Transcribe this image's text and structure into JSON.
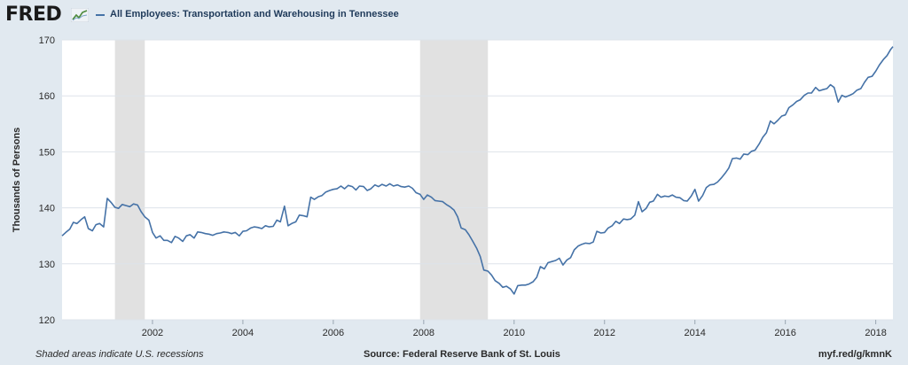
{
  "header": {
    "logo": "FRED",
    "title": "All Employees: Transportation and Warehousing in Tennessee"
  },
  "footer": {
    "recession_note": "Shaded areas indicate U.S. recessions",
    "source": "Source: Federal Reserve Bank of St. Louis",
    "short_url": "myf.red/g/kmnK"
  },
  "colors": {
    "line": "#4572a7",
    "recession": "#e1e1e1",
    "background": "#e1e9f0",
    "plot": "#ffffff",
    "grid": "#dde3ea"
  },
  "icons": [
    "fred-chart-icon"
  ],
  "chart_data": {
    "type": "line",
    "title": "All Employees: Transportation and Warehousing in Tennessee",
    "xlabel": "",
    "ylabel": "Thousands of Persons",
    "xlim": [
      2000.0,
      2018.38
    ],
    "ylim": [
      120,
      170
    ],
    "yticks": [
      120,
      130,
      140,
      150,
      160,
      170
    ],
    "xticks": [
      2002,
      2004,
      2006,
      2008,
      2010,
      2012,
      2014,
      2016,
      2018
    ],
    "xtick_labels": [
      "2002",
      "2004",
      "2006",
      "2008",
      "2010",
      "2012",
      "2014",
      "2016",
      "2018"
    ],
    "grid": true,
    "recessions": [
      [
        2001.17,
        2001.83
      ],
      [
        2007.92,
        2009.42
      ]
    ],
    "series": [
      {
        "name": "All Employees: Transportation and Warehousing in Tennessee",
        "points": [
          [
            2000.0,
            135.0
          ],
          [
            2000.08,
            135.6
          ],
          [
            2000.17,
            136.2
          ],
          [
            2000.25,
            137.4
          ],
          [
            2000.33,
            137.2
          ],
          [
            2000.42,
            137.9
          ],
          [
            2000.5,
            138.4
          ],
          [
            2000.58,
            136.3
          ],
          [
            2000.67,
            135.9
          ],
          [
            2000.75,
            137.0
          ],
          [
            2000.83,
            137.2
          ],
          [
            2000.92,
            136.6
          ],
          [
            2001.0,
            141.7
          ],
          [
            2001.08,
            141.0
          ],
          [
            2001.17,
            140.1
          ],
          [
            2001.25,
            139.9
          ],
          [
            2001.33,
            140.6
          ],
          [
            2001.42,
            140.4
          ],
          [
            2001.5,
            140.2
          ],
          [
            2001.58,
            140.7
          ],
          [
            2001.67,
            140.5
          ],
          [
            2001.75,
            139.3
          ],
          [
            2001.83,
            138.4
          ],
          [
            2001.92,
            137.8
          ],
          [
            2002.0,
            135.6
          ],
          [
            2002.08,
            134.6
          ],
          [
            2002.17,
            135.0
          ],
          [
            2002.25,
            134.2
          ],
          [
            2002.33,
            134.2
          ],
          [
            2002.42,
            133.8
          ],
          [
            2002.5,
            134.9
          ],
          [
            2002.58,
            134.6
          ],
          [
            2002.67,
            134.0
          ],
          [
            2002.75,
            135.0
          ],
          [
            2002.83,
            135.2
          ],
          [
            2002.92,
            134.6
          ],
          [
            2003.0,
            135.7
          ],
          [
            2003.08,
            135.6
          ],
          [
            2003.17,
            135.4
          ],
          [
            2003.25,
            135.3
          ],
          [
            2003.33,
            135.1
          ],
          [
            2003.42,
            135.4
          ],
          [
            2003.5,
            135.5
          ],
          [
            2003.58,
            135.7
          ],
          [
            2003.67,
            135.6
          ],
          [
            2003.75,
            135.4
          ],
          [
            2003.83,
            135.6
          ],
          [
            2003.92,
            135.0
          ],
          [
            2004.0,
            135.8
          ],
          [
            2004.08,
            135.9
          ],
          [
            2004.17,
            136.4
          ],
          [
            2004.25,
            136.6
          ],
          [
            2004.33,
            136.5
          ],
          [
            2004.42,
            136.3
          ],
          [
            2004.5,
            136.8
          ],
          [
            2004.58,
            136.6
          ],
          [
            2004.67,
            136.7
          ],
          [
            2004.75,
            137.8
          ],
          [
            2004.83,
            137.5
          ],
          [
            2004.92,
            140.3
          ],
          [
            2005.0,
            136.8
          ],
          [
            2005.08,
            137.2
          ],
          [
            2005.17,
            137.5
          ],
          [
            2005.25,
            138.7
          ],
          [
            2005.33,
            138.6
          ],
          [
            2005.42,
            138.4
          ],
          [
            2005.5,
            141.9
          ],
          [
            2005.58,
            141.5
          ],
          [
            2005.67,
            142.0
          ],
          [
            2005.75,
            142.2
          ],
          [
            2005.83,
            142.8
          ],
          [
            2005.92,
            143.1
          ],
          [
            2006.0,
            143.3
          ],
          [
            2006.08,
            143.4
          ],
          [
            2006.17,
            143.9
          ],
          [
            2006.25,
            143.4
          ],
          [
            2006.33,
            144.0
          ],
          [
            2006.42,
            143.8
          ],
          [
            2006.5,
            143.2
          ],
          [
            2006.58,
            143.9
          ],
          [
            2006.67,
            143.8
          ],
          [
            2006.75,
            143.1
          ],
          [
            2006.83,
            143.4
          ],
          [
            2006.92,
            144.1
          ],
          [
            2007.0,
            143.8
          ],
          [
            2007.08,
            144.2
          ],
          [
            2007.17,
            143.9
          ],
          [
            2007.25,
            144.3
          ],
          [
            2007.33,
            143.9
          ],
          [
            2007.42,
            144.1
          ],
          [
            2007.5,
            143.8
          ],
          [
            2007.58,
            143.7
          ],
          [
            2007.67,
            143.9
          ],
          [
            2007.75,
            143.5
          ],
          [
            2007.83,
            142.7
          ],
          [
            2007.92,
            142.4
          ],
          [
            2008.0,
            141.5
          ],
          [
            2008.08,
            142.3
          ],
          [
            2008.17,
            141.9
          ],
          [
            2008.25,
            141.3
          ],
          [
            2008.33,
            141.2
          ],
          [
            2008.42,
            141.1
          ],
          [
            2008.5,
            140.6
          ],
          [
            2008.58,
            140.2
          ],
          [
            2008.67,
            139.6
          ],
          [
            2008.75,
            138.4
          ],
          [
            2008.83,
            136.4
          ],
          [
            2008.92,
            136.1
          ],
          [
            2009.0,
            135.2
          ],
          [
            2009.08,
            134.1
          ],
          [
            2009.17,
            132.8
          ],
          [
            2009.25,
            131.3
          ],
          [
            2009.33,
            128.9
          ],
          [
            2009.42,
            128.7
          ],
          [
            2009.5,
            128.0
          ],
          [
            2009.58,
            127.0
          ],
          [
            2009.67,
            126.5
          ],
          [
            2009.75,
            125.8
          ],
          [
            2009.83,
            126.0
          ],
          [
            2009.92,
            125.5
          ],
          [
            2010.0,
            124.6
          ],
          [
            2010.08,
            126.1
          ],
          [
            2010.17,
            126.2
          ],
          [
            2010.25,
            126.2
          ],
          [
            2010.33,
            126.4
          ],
          [
            2010.42,
            126.8
          ],
          [
            2010.5,
            127.6
          ],
          [
            2010.58,
            129.5
          ],
          [
            2010.67,
            129.1
          ],
          [
            2010.75,
            130.2
          ],
          [
            2010.83,
            130.4
          ],
          [
            2010.92,
            130.6
          ],
          [
            2011.0,
            131.0
          ],
          [
            2011.08,
            129.8
          ],
          [
            2011.17,
            130.7
          ],
          [
            2011.25,
            131.1
          ],
          [
            2011.33,
            132.5
          ],
          [
            2011.42,
            133.2
          ],
          [
            2011.5,
            133.5
          ],
          [
            2011.58,
            133.7
          ],
          [
            2011.67,
            133.6
          ],
          [
            2011.75,
            133.9
          ],
          [
            2011.83,
            135.8
          ],
          [
            2011.92,
            135.5
          ],
          [
            2012.0,
            135.6
          ],
          [
            2012.08,
            136.4
          ],
          [
            2012.17,
            136.8
          ],
          [
            2012.25,
            137.6
          ],
          [
            2012.33,
            137.2
          ],
          [
            2012.42,
            138.0
          ],
          [
            2012.5,
            137.9
          ],
          [
            2012.58,
            138.0
          ],
          [
            2012.67,
            138.7
          ],
          [
            2012.75,
            141.1
          ],
          [
            2012.83,
            139.3
          ],
          [
            2012.92,
            139.9
          ],
          [
            2013.0,
            141.0
          ],
          [
            2013.08,
            141.2
          ],
          [
            2013.17,
            142.4
          ],
          [
            2013.25,
            141.9
          ],
          [
            2013.33,
            142.1
          ],
          [
            2013.42,
            142.0
          ],
          [
            2013.5,
            142.3
          ],
          [
            2013.58,
            141.9
          ],
          [
            2013.67,
            141.8
          ],
          [
            2013.75,
            141.3
          ],
          [
            2013.83,
            141.2
          ],
          [
            2013.92,
            142.1
          ],
          [
            2014.0,
            143.3
          ],
          [
            2014.08,
            141.2
          ],
          [
            2014.17,
            142.2
          ],
          [
            2014.25,
            143.6
          ],
          [
            2014.33,
            144.1
          ],
          [
            2014.42,
            144.2
          ],
          [
            2014.5,
            144.6
          ],
          [
            2014.58,
            145.3
          ],
          [
            2014.67,
            146.2
          ],
          [
            2014.75,
            147.1
          ],
          [
            2014.83,
            148.8
          ],
          [
            2014.92,
            148.9
          ],
          [
            2015.0,
            148.7
          ],
          [
            2015.08,
            149.6
          ],
          [
            2015.17,
            149.5
          ],
          [
            2015.25,
            150.1
          ],
          [
            2015.33,
            150.3
          ],
          [
            2015.42,
            151.4
          ],
          [
            2015.5,
            152.6
          ],
          [
            2015.58,
            153.4
          ],
          [
            2015.67,
            155.5
          ],
          [
            2015.75,
            155.0
          ],
          [
            2015.83,
            155.6
          ],
          [
            2015.92,
            156.4
          ],
          [
            2016.0,
            156.6
          ],
          [
            2016.08,
            157.9
          ],
          [
            2016.17,
            158.4
          ],
          [
            2016.25,
            159.0
          ],
          [
            2016.33,
            159.3
          ],
          [
            2016.42,
            160.1
          ],
          [
            2016.5,
            160.5
          ],
          [
            2016.58,
            160.5
          ],
          [
            2016.67,
            161.5
          ],
          [
            2016.75,
            160.9
          ],
          [
            2016.83,
            161.1
          ],
          [
            2016.92,
            161.3
          ],
          [
            2017.0,
            162.0
          ],
          [
            2017.08,
            161.5
          ],
          [
            2017.17,
            158.9
          ],
          [
            2017.25,
            160.1
          ],
          [
            2017.33,
            159.8
          ],
          [
            2017.42,
            160.1
          ],
          [
            2017.5,
            160.4
          ],
          [
            2017.58,
            161.0
          ],
          [
            2017.67,
            161.3
          ],
          [
            2017.75,
            162.4
          ],
          [
            2017.83,
            163.3
          ],
          [
            2017.92,
            163.5
          ],
          [
            2018.0,
            164.4
          ],
          [
            2018.08,
            165.5
          ],
          [
            2018.17,
            166.5
          ],
          [
            2018.25,
            167.2
          ],
          [
            2018.33,
            168.3
          ],
          [
            2018.38,
            168.8
          ]
        ]
      }
    ]
  }
}
